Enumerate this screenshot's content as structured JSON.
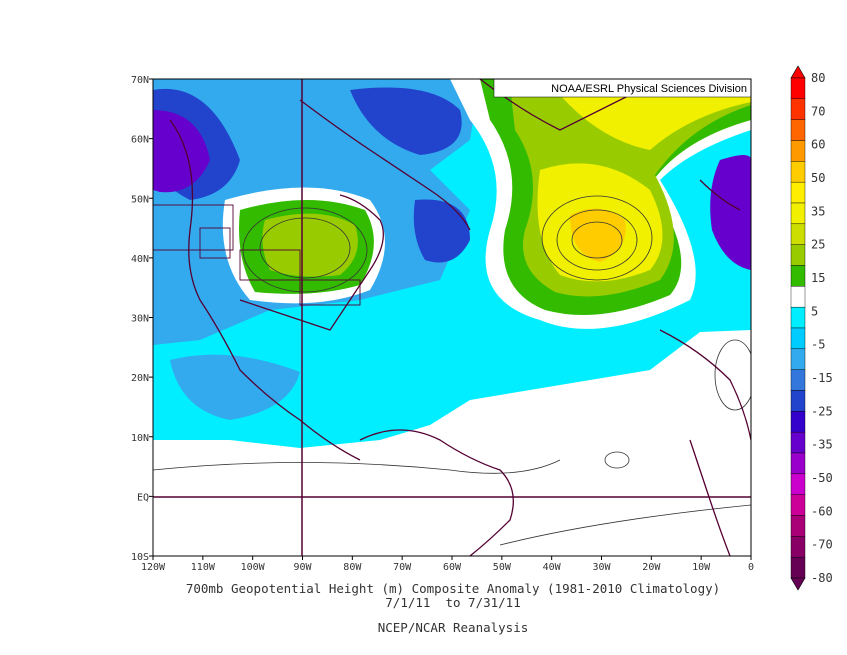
{
  "map": {
    "credit": "NOAA/ESRL Physical Sciences Division",
    "lon_labels": [
      "120W",
      "110W",
      "100W",
      "90W",
      "80W",
      "70W",
      "60W",
      "50W",
      "40W",
      "30W",
      "20W",
      "10W",
      "0"
    ],
    "lat_labels": [
      "70N",
      "60N",
      "50N",
      "40N",
      "30N",
      "20N",
      "10N",
      "EQ",
      "10S"
    ],
    "lon_range": [
      -120,
      0
    ],
    "lat_range": [
      -10,
      70
    ]
  },
  "colorbar": {
    "labels": [
      "80",
      "70",
      "60",
      "50",
      "35",
      "25",
      "15",
      "5",
      "-5",
      "-15",
      "-25",
      "-35",
      "-50",
      "-60",
      "-70",
      "-80"
    ],
    "colors": [
      "#ff0000",
      "#ff3300",
      "#ff6600",
      "#ff9900",
      "#ffcc00",
      "#ffee00",
      "#f0f000",
      "#ccdd00",
      "#99cc00",
      "#33bb00",
      "#ffffff",
      "#00eeff",
      "#00ccff",
      "#33aaee",
      "#3377dd",
      "#2244cc",
      "#3300cc",
      "#6600cc",
      "#9900cc",
      "#cc00cc",
      "#cc0099",
      "#aa0077",
      "#880066",
      "#660055"
    ]
  },
  "caption": {
    "line1": "700mb Geopotential Height (m) Composite Anomaly (1981-2010 Climatology)",
    "line2": "7/1/11  to 7/31/11",
    "line3": "NCEP/NCAR Reanalysis"
  }
}
